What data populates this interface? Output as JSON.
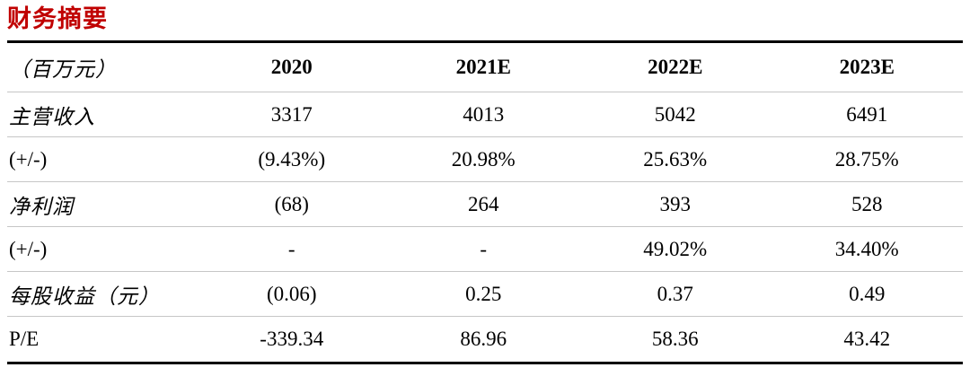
{
  "title": "财务摘要",
  "theme": {
    "title_color": "#C00000",
    "thick_rule_color": "#000000",
    "thin_rule_color": "#C6C6C6",
    "text_color": "#000000",
    "background": "#FFFFFF"
  },
  "table": {
    "unit_header": "（百万元）",
    "columns": [
      "2020",
      "2021E",
      "2022E",
      "2023E"
    ],
    "rows": [
      {
        "label": "主营收入",
        "values": [
          "3317",
          "4013",
          "5042",
          "6491"
        ]
      },
      {
        "label": "(+/-)",
        "values": [
          "(9.43%)",
          "20.98%",
          "25.63%",
          "28.75%"
        ]
      },
      {
        "label": "净利润",
        "values": [
          "(68)",
          "264",
          "393",
          "528"
        ]
      },
      {
        "label": "(+/-)",
        "values": [
          "-",
          "-",
          "49.02%",
          "34.40%"
        ]
      },
      {
        "label": "每股收益（元）",
        "values": [
          "(0.06)",
          "0.25",
          "0.37",
          "0.49"
        ]
      },
      {
        "label": "P/E",
        "values": [
          "-339.34",
          "86.96",
          "58.36",
          "43.42"
        ]
      }
    ]
  },
  "chart_data": {
    "type": "table",
    "title": "财务摘要",
    "unit": "百万元",
    "columns": [
      "2020",
      "2021E",
      "2022E",
      "2023E"
    ],
    "rows": [
      {
        "label": "主营收入",
        "values": [
          "3317",
          "4013",
          "5042",
          "6491"
        ]
      },
      {
        "label": "(+/-)",
        "values": [
          "(9.43%)",
          "20.98%",
          "25.63%",
          "28.75%"
        ]
      },
      {
        "label": "净利润",
        "values": [
          "(68)",
          "264",
          "393",
          "528"
        ]
      },
      {
        "label": "(+/-)",
        "values": [
          "-",
          "-",
          "49.02%",
          "34.40%"
        ]
      },
      {
        "label": "每股收益（元）",
        "values": [
          "(0.06)",
          "0.25",
          "0.37",
          "0.49"
        ]
      },
      {
        "label": "P/E",
        "values": [
          "-339.34",
          "86.96",
          "58.36",
          "43.42"
        ]
      }
    ]
  }
}
